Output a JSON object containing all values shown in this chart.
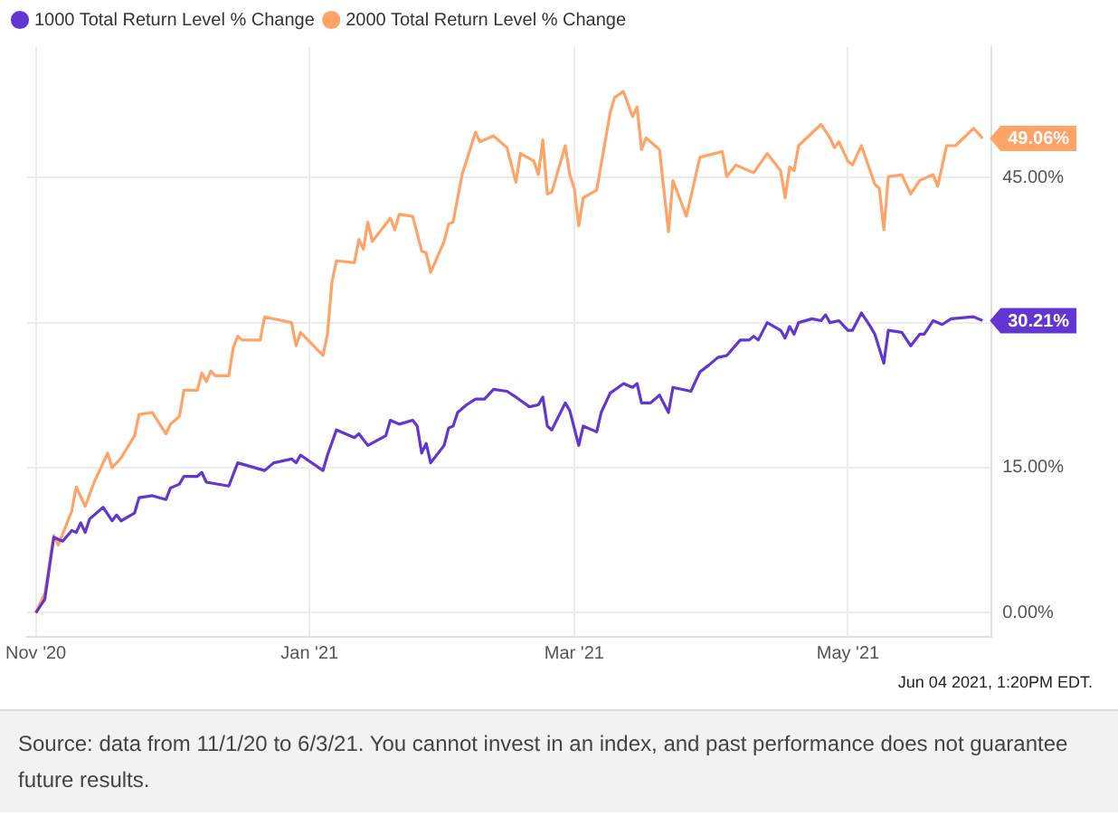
{
  "chart_data": {
    "type": "line",
    "legend": "top left",
    "grid": true,
    "marker": "none",
    "line_style": "solid",
    "xlim": [
      "2020-10-30",
      "2021-06-02"
    ],
    "xticks": [
      {
        "value": "2020-11-01",
        "label": "Nov '20"
      },
      {
        "value": "2021-01-01",
        "label": "Jan '21"
      },
      {
        "value": "2021-03-01",
        "label": "Mar '21"
      },
      {
        "value": "2021-05-01",
        "label": "May '21"
      }
    ],
    "ylim": [
      -2.5,
      58.5
    ],
    "yticks": [
      {
        "value": 0,
        "label": "0.00%"
      },
      {
        "value": 15,
        "label": "15.00%"
      },
      {
        "value": 30,
        "label": null
      },
      {
        "value": 45,
        "label": "45.00%"
      }
    ],
    "series": [
      {
        "name": "1000 Total Return Level % Change",
        "color": "#6236d0",
        "x": [
          "2020-11-01",
          "2020-11-03",
          "2020-11-04",
          "2020-11-05",
          "2020-11-07",
          "2020-11-09",
          "2020-11-10",
          "2020-11-11",
          "2020-11-12",
          "2020-11-13",
          "2020-11-16",
          "2020-11-18",
          "2020-11-19",
          "2020-11-20",
          "2020-11-23",
          "2020-11-24",
          "2020-11-27",
          "2020-11-30",
          "2020-12-01",
          "2020-12-03",
          "2020-12-04",
          "2020-12-07",
          "2020-12-08",
          "2020-12-09",
          "2020-12-14",
          "2020-12-15",
          "2020-12-16",
          "2020-12-22",
          "2020-12-24",
          "2020-12-28",
          "2020-12-29",
          "2020-12-30",
          "2021-01-04",
          "2021-01-05",
          "2021-01-07",
          "2021-01-11",
          "2021-01-12",
          "2021-01-14",
          "2021-01-18",
          "2021-01-19",
          "2021-01-21",
          "2021-01-24",
          "2021-01-25",
          "2021-01-26",
          "2021-01-27",
          "2021-01-28",
          "2021-01-31",
          "2021-02-01",
          "2021-02-02",
          "2021-02-03",
          "2021-02-05",
          "2021-02-07",
          "2021-02-09",
          "2021-02-11",
          "2021-02-14",
          "2021-02-16",
          "2021-02-19",
          "2021-02-21",
          "2021-02-22",
          "2021-02-23",
          "2021-02-24",
          "2021-02-27",
          "2021-02-28",
          "2021-03-02",
          "2021-03-03",
          "2021-03-06",
          "2021-03-07",
          "2021-03-09",
          "2021-03-12",
          "2021-03-14",
          "2021-03-15",
          "2021-03-16",
          "2021-03-18",
          "2021-03-20",
          "2021-03-22",
          "2021-03-23",
          "2021-03-27",
          "2021-03-29",
          "2021-03-31",
          "2021-04-02",
          "2021-04-04",
          "2021-04-07",
          "2021-04-09",
          "2021-04-10",
          "2021-04-11",
          "2021-04-13",
          "2021-04-16",
          "2021-04-17",
          "2021-04-18",
          "2021-04-19",
          "2021-04-20",
          "2021-04-23",
          "2021-04-25",
          "2021-04-26",
          "2021-04-27",
          "2021-04-29",
          "2021-05-01",
          "2021-05-02",
          "2021-05-04",
          "2021-05-06",
          "2021-05-07",
          "2021-05-09",
          "2021-05-10",
          "2021-05-13",
          "2021-05-15",
          "2021-05-17",
          "2021-05-18",
          "2021-05-20",
          "2021-05-22",
          "2021-05-24",
          "2021-05-29",
          "2021-05-31"
        ],
        "values": [
          0,
          1.4,
          4.6,
          7.8,
          7.4,
          8.5,
          8.3,
          9.3,
          8.3,
          9.7,
          10.9,
          9.5,
          10.1,
          9.5,
          10.3,
          11.9,
          12.1,
          11.7,
          12.9,
          13.3,
          14.1,
          14.1,
          14.5,
          13.5,
          13.1,
          14.3,
          15.5,
          14.7,
          15.5,
          15.9,
          15.5,
          16.3,
          14.7,
          16.3,
          18.9,
          18.1,
          18.5,
          17.3,
          18.3,
          19.9,
          19.5,
          19.9,
          19.3,
          16.5,
          17.5,
          15.5,
          17.3,
          19.1,
          19.3,
          20.7,
          21.5,
          22.1,
          22.1,
          23.1,
          22.9,
          22.3,
          21.3,
          21.5,
          22.3,
          19.3,
          18.9,
          21.7,
          20.9,
          17.3,
          19.3,
          18.7,
          20.7,
          22.7,
          23.7,
          23.3,
          23.7,
          21.7,
          21.7,
          22.5,
          20.7,
          23.3,
          22.9,
          24.9,
          25.6,
          26.4,
          26.6,
          28.2,
          28.2,
          28.6,
          28.2,
          30,
          29.2,
          28.4,
          29.6,
          28.8,
          30,
          30.4,
          30.2,
          30.8,
          30,
          30.2,
          29.2,
          29.2,
          31,
          29.6,
          28.8,
          25.8,
          29.2,
          29,
          27.6,
          28.8,
          28.8,
          30.2,
          29.8,
          30.4,
          30.6,
          30.21
        ]
      },
      {
        "name": "2000 Total Return Level % Change",
        "color": "#ffa366",
        "x": [
          "2020-11-01",
          "2020-11-03",
          "2020-11-04",
          "2020-11-05",
          "2020-11-06",
          "2020-11-09",
          "2020-11-10",
          "2020-11-12",
          "2020-11-14",
          "2020-11-17",
          "2020-11-18",
          "2020-11-20",
          "2020-11-23",
          "2020-11-24",
          "2020-11-27",
          "2020-11-30",
          "2020-12-01",
          "2020-12-03",
          "2020-12-04",
          "2020-12-07",
          "2020-12-08",
          "2020-12-09",
          "2020-12-10",
          "2020-12-11",
          "2020-12-14",
          "2020-12-15",
          "2020-12-16",
          "2020-12-17",
          "2020-12-21",
          "2020-12-22",
          "2020-12-28",
          "2020-12-29",
          "2020-12-30",
          "2021-01-04",
          "2021-01-05",
          "2021-01-06",
          "2021-01-07",
          "2021-01-11",
          "2021-01-12",
          "2021-01-13",
          "2021-01-14",
          "2021-01-15",
          "2021-01-19",
          "2021-01-20",
          "2021-01-21",
          "2021-01-24",
          "2021-01-26",
          "2021-01-27",
          "2021-01-28",
          "2021-01-31",
          "2021-02-01",
          "2021-02-02",
          "2021-02-04",
          "2021-02-07",
          "2021-02-08",
          "2021-02-11",
          "2021-02-14",
          "2021-02-16",
          "2021-02-17",
          "2021-02-20",
          "2021-02-21",
          "2021-02-22",
          "2021-02-23",
          "2021-02-24",
          "2021-02-27",
          "2021-02-28",
          "2021-03-01",
          "2021-03-02",
          "2021-03-03",
          "2021-03-06",
          "2021-03-09",
          "2021-03-10",
          "2021-03-12",
          "2021-03-14",
          "2021-03-15",
          "2021-03-16",
          "2021-03-17",
          "2021-03-20",
          "2021-03-22",
          "2021-03-23",
          "2021-03-26",
          "2021-03-29",
          "2021-04-03",
          "2021-04-04",
          "2021-04-06",
          "2021-04-10",
          "2021-04-13",
          "2021-04-16",
          "2021-04-17",
          "2021-04-18",
          "2021-04-19",
          "2021-04-20",
          "2021-04-25",
          "2021-04-27",
          "2021-04-28",
          "2021-04-29",
          "2021-05-01",
          "2021-05-02",
          "2021-05-04",
          "2021-05-07",
          "2021-05-08",
          "2021-05-09",
          "2021-05-10",
          "2021-05-13",
          "2021-05-15",
          "2021-05-17",
          "2021-05-20",
          "2021-05-21",
          "2021-05-23",
          "2021-05-25",
          "2021-05-29",
          "2021-05-31"
        ],
        "values": [
          0,
          2,
          5,
          8,
          7,
          10.5,
          13,
          11,
          13.5,
          16.5,
          15,
          16,
          18.3,
          20.5,
          20.7,
          18.5,
          19.5,
          20.3,
          23,
          23,
          24.8,
          23.9,
          25,
          24.5,
          24.5,
          27.4,
          28.6,
          28.2,
          28.2,
          30.6,
          30,
          27.6,
          29,
          26.6,
          28.8,
          34.2,
          36.4,
          36.2,
          38.6,
          37.6,
          40.4,
          38.4,
          40.8,
          39.6,
          41.2,
          41,
          37.4,
          37.2,
          35.2,
          38.4,
          40.2,
          40.4,
          45.3,
          49.7,
          48.7,
          49.3,
          48.1,
          44.5,
          47.5,
          46.7,
          45.3,
          48.9,
          43.3,
          43.5,
          48.3,
          45.3,
          43.9,
          40,
          42.9,
          43.7,
          51.7,
          53.3,
          53.9,
          51.3,
          52.3,
          47.9,
          49.1,
          47.9,
          39.4,
          44.7,
          41,
          47.1,
          47.7,
          45.1,
          46.3,
          45.5,
          47.5,
          45.7,
          42.9,
          46.1,
          45.7,
          48.3,
          50.5,
          49.1,
          48.1,
          48.7,
          46.7,
          46.3,
          48.3,
          44.3,
          43.9,
          39.6,
          45.1,
          45.3,
          43.3,
          44.7,
          45.3,
          44.1,
          48.3,
          48.3,
          50.1,
          49.06
        ]
      }
    ],
    "annotations": [
      {
        "text": "49.06%",
        "x": "2021-05-31",
        "y": 49.06
      },
      {
        "text": "30.21%",
        "x": "2021-05-31",
        "y": 30.21
      },
      "Jun 04 2021, 1:20PM EDT.",
      "Source: data from 11/1/20 to 6/3/21. You cannot invest in an index, and past performance does not guarantee future results."
    ]
  }
}
